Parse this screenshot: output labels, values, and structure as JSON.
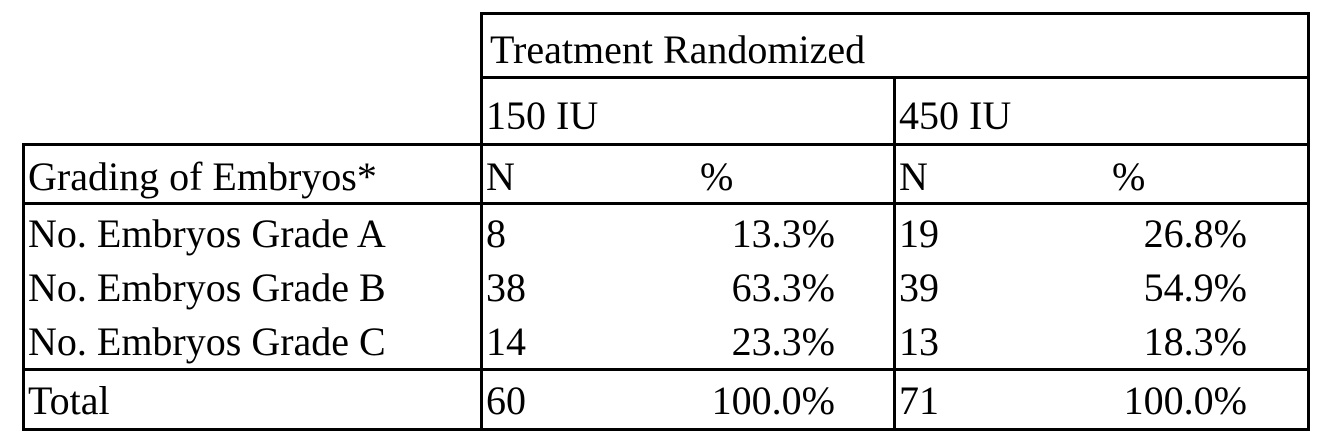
{
  "table": {
    "header_group": "Treatment Randomized",
    "dose_1": "150 IU",
    "dose_2": "450 IU",
    "row_label_header": "Grading of Embryos*",
    "col_n": "N",
    "col_pct": "%",
    "rows": [
      {
        "label": "No. Embryos Grade A",
        "n1": "8",
        "p1": "13.3%",
        "n2": "19",
        "p2": "26.8%"
      },
      {
        "label": "No. Embryos Grade B",
        "n1": "38",
        "p1": "63.3%",
        "n2": "39",
        "p2": "54.9%"
      },
      {
        "label": "No. Embryos Grade C",
        "n1": "14",
        "p1": "23.3%",
        "n2": "13",
        "p2": "18.3%"
      }
    ],
    "total": {
      "label": "Total",
      "n1": "60",
      "p1": "100.0%",
      "n2": "71",
      "p2": "100.0%"
    }
  }
}
